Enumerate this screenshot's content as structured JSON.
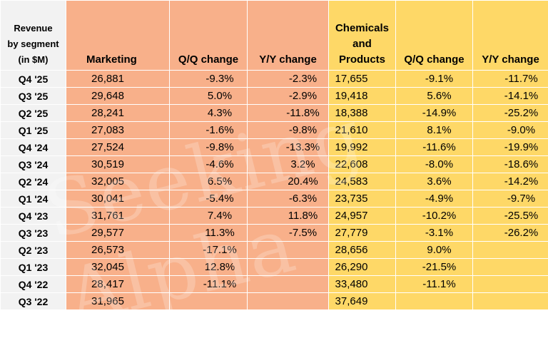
{
  "headers": {
    "first": [
      "Revenue",
      "by segment",
      "(in $M)"
    ],
    "marketing": "Marketing",
    "mk_qq": "Q/Q change",
    "mk_yy": "Y/Y change",
    "chem": [
      "Chemicals",
      "and",
      "Products"
    ],
    "ch_qq": "Q/Q change",
    "ch_yy": "Y/Y change"
  },
  "rows": [
    {
      "q": "Q4 '25",
      "mk": "26,881",
      "mkqq": "-9.3%",
      "mkyy": "-2.3%",
      "ch": "17,655",
      "chqq": "-9.1%",
      "chyy": "-11.7%"
    },
    {
      "q": "Q3 '25",
      "mk": "29,648",
      "mkqq": "5.0%",
      "mkyy": "-2.9%",
      "ch": "19,418",
      "chqq": "5.6%",
      "chyy": "-14.1%"
    },
    {
      "q": "Q2 '25",
      "mk": "28,241",
      "mkqq": "4.3%",
      "mkyy": "-11.8%",
      "ch": "18,388",
      "chqq": "-14.9%",
      "chyy": "-25.2%"
    },
    {
      "q": "Q1 '25",
      "mk": "27,083",
      "mkqq": "-1.6%",
      "mkyy": "-9.8%",
      "ch": "21,610",
      "chqq": "8.1%",
      "chyy": "-9.0%"
    },
    {
      "q": "Q4 '24",
      "mk": "27,524",
      "mkqq": "-9.8%",
      "mkyy": "-13.3%",
      "ch": "19,992",
      "chqq": "-11.6%",
      "chyy": "-19.9%"
    },
    {
      "q": "Q3 '24",
      "mk": "30,519",
      "mkqq": "-4.6%",
      "mkyy": "3.2%",
      "ch": "22,608",
      "chqq": "-8.0%",
      "chyy": "-18.6%"
    },
    {
      "q": "Q2 '24",
      "mk": "32,005",
      "mkqq": "6.5%",
      "mkyy": "20.4%",
      "ch": "24,583",
      "chqq": "3.6%",
      "chyy": "-14.2%"
    },
    {
      "q": "Q1 '24",
      "mk": "30,041",
      "mkqq": "-5.4%",
      "mkyy": "-6.3%",
      "ch": "23,735",
      "chqq": "-4.9%",
      "chyy": "-9.7%"
    },
    {
      "q": "Q4 '23",
      "mk": "31,761",
      "mkqq": "7.4%",
      "mkyy": "11.8%",
      "ch": "24,957",
      "chqq": "-10.2%",
      "chyy": "-25.5%"
    },
    {
      "q": "Q3 '23",
      "mk": "29,577",
      "mkqq": "11.3%",
      "mkyy": "-7.5%",
      "ch": "27,779",
      "chqq": "-3.1%",
      "chyy": "-26.2%"
    },
    {
      "q": "Q2 '23",
      "mk": "26,573",
      "mkqq": "-17.1%",
      "mkyy": "",
      "ch": "28,656",
      "chqq": "9.0%",
      "chyy": ""
    },
    {
      "q": "Q1 '23",
      "mk": "32,045",
      "mkqq": "12.8%",
      "mkyy": "",
      "ch": "26,290",
      "chqq": "-21.5%",
      "chyy": ""
    },
    {
      "q": "Q4 '22",
      "mk": "28,417",
      "mkqq": "-11.1%",
      "mkyy": "",
      "ch": "33,480",
      "chqq": "-11.1%",
      "chyy": ""
    },
    {
      "q": "Q3 '22",
      "mk": "31,965",
      "mkqq": "",
      "mkyy": "",
      "ch": "37,649",
      "chqq": "",
      "chyy": ""
    }
  ],
  "watermark": "Seeking Alpha",
  "colors": {
    "marketing": "#f8b08a",
    "chemicals": "#fed867",
    "label_bg": "#f2f2f2"
  }
}
